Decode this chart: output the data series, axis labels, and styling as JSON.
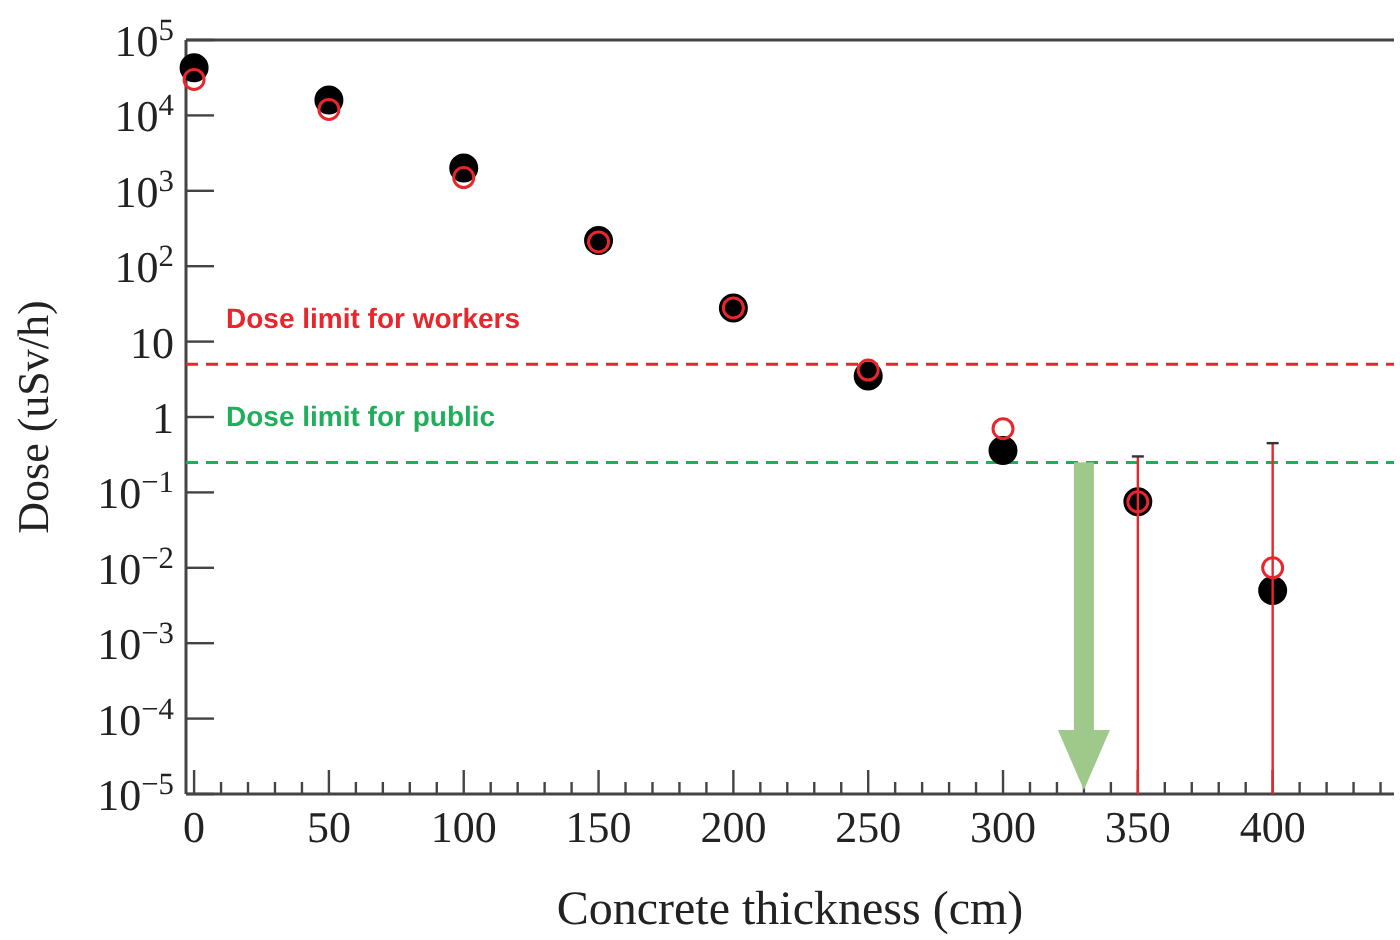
{
  "chart_data": {
    "type": "scatter",
    "xlabel": "Concrete thickness (cm)",
    "ylabel": "Dose (uSv/h)",
    "log": "y",
    "marker": "circle",
    "grid": false,
    "xlim": [
      -3,
      445
    ],
    "xticks": [
      0,
      {
        "value": 10,
        "label": null
      },
      {
        "value": 20,
        "label": null
      },
      {
        "value": 30,
        "label": null
      },
      {
        "value": 40,
        "label": null
      },
      50,
      {
        "value": 60,
        "label": null
      },
      {
        "value": 70,
        "label": null
      },
      {
        "value": 80,
        "label": null
      },
      {
        "value": 90,
        "label": null
      },
      100,
      {
        "value": 110,
        "label": null
      },
      {
        "value": 120,
        "label": null
      },
      {
        "value": 130,
        "label": null
      },
      {
        "value": 140,
        "label": null
      },
      150,
      {
        "value": 160,
        "label": null
      },
      {
        "value": 170,
        "label": null
      },
      {
        "value": 180,
        "label": null
      },
      {
        "value": 190,
        "label": null
      },
      200,
      {
        "value": 210,
        "label": null
      },
      {
        "value": 220,
        "label": null
      },
      {
        "value": 230,
        "label": null
      },
      {
        "value": 240,
        "label": null
      },
      250,
      {
        "value": 260,
        "label": null
      },
      {
        "value": 270,
        "label": null
      },
      {
        "value": 280,
        "label": null
      },
      {
        "value": 290,
        "label": null
      },
      300,
      {
        "value": 310,
        "label": null
      },
      {
        "value": 320,
        "label": null
      },
      {
        "value": 330,
        "label": null
      },
      {
        "value": 340,
        "label": null
      },
      350,
      {
        "value": 360,
        "label": null
      },
      {
        "value": 370,
        "label": null
      },
      {
        "value": 380,
        "label": null
      },
      {
        "value": 390,
        "label": null
      },
      400,
      {
        "value": 410,
        "label": null
      },
      {
        "value": 420,
        "label": null
      },
      {
        "value": 430,
        "label": null
      },
      {
        "value": 440,
        "label": null
      }
    ],
    "ylim": [
      1e-05,
      100000
    ],
    "yticks": [
      {
        "value": 1e-05,
        "label": "10$^{−5}$"
      },
      {
        "value": 0.0001,
        "label": "10$^{−4}$"
      },
      {
        "value": 0.001,
        "label": "10$^{−3}$"
      },
      {
        "value": 0.01,
        "label": "10$^{−2}$"
      },
      {
        "value": 0.1,
        "label": "10$^{−1}$"
      },
      1,
      10,
      {
        "value": 100,
        "label": "10$^{2}$"
      },
      {
        "value": 1000,
        "label": "10$^{3}$"
      },
      {
        "value": 10000,
        "label": "10$^{4}$"
      },
      {
        "value": 100000,
        "label": "10$^{5}$"
      }
    ],
    "x": [
      0,
      50,
      100,
      150,
      200,
      250,
      300,
      350,
      400
    ],
    "series": [
      {
        "color": "#000000",
        "values": [
          43000,
          16000,
          2000,
          220,
          28,
          3.5,
          0.36,
          0.075,
          0.005
        ]
      },
      {
        "color": "#e8262b",
        "values": [
          30000,
          12000,
          1500,
          210,
          28,
          4.2,
          0.7,
          0.075,
          0.01
        ],
        "errors": [
          null,
          null,
          null,
          null,
          null,
          null,
          null,
          [
            1e-05,
            0.3
          ],
          [
            1e-05,
            0.45
          ]
        ]
      }
    ],
    "ref_lines": [
      {
        "axis": "y",
        "value": 5,
        "label": "Dose limit for workers",
        "color": "#e8262b",
        "line_style": "dashed"
      },
      {
        "axis": "y",
        "value": 0.25,
        "label": "Dose limit for public",
        "color": "#1fae5a",
        "line_style": "dashed"
      }
    ]
  }
}
